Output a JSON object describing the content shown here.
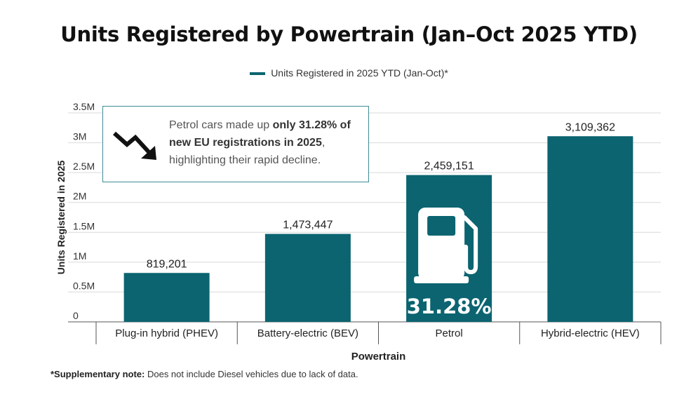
{
  "title": "Units Registered by Powertrain (Jan–Oct 2025 YTD)",
  "legend": {
    "label": "Units Registered in 2025 YTD (Jan-Oct)*"
  },
  "callout": {
    "text_start": "Petrol cars made up ",
    "text_bold": "only 31.28% of new EU registrations in 2025",
    "text_end": ", highlighting their rapid decline."
  },
  "note": {
    "bold": "*Supplementary note:",
    "text": " Does not include Diesel vehicles due to lack of data."
  },
  "colors": {
    "bar": "#0b6470",
    "grid": "#d9d9d9",
    "callout_border": "#3e8c95"
  },
  "chart_data": {
    "type": "bar",
    "title": "Units Registered by Powertrain (Jan–Oct 2025 YTD)",
    "xlabel": "Powertrain",
    "ylabel": "Units Registered in 2025",
    "categories": [
      "Plug-in hybrid (PHEV)",
      "Battery-electric (BEV)",
      "Petrol",
      "Hybrid-electric (HEV)"
    ],
    "series": [
      {
        "name": "Units Registered in 2025 YTD (Jan-Oct)*",
        "values": [
          819201,
          1473447,
          2459151,
          3109362
        ]
      }
    ],
    "data_labels": [
      "819,201",
      "1,473,447",
      "2,459,151",
      "3,109,362"
    ],
    "yticks": [
      0,
      500000,
      1000000,
      1500000,
      2000000,
      2500000,
      3000000,
      3500000
    ],
    "ytick_labels": [
      "0",
      "0.5M",
      "1M",
      "1.5M",
      "2M",
      "2.5M",
      "3M",
      "3.5M"
    ],
    "ylim": [
      0,
      3500000
    ],
    "grid": true,
    "legend_position": "top-center",
    "highlight": {
      "category": "Petrol",
      "label": "31.28%",
      "icon": "fuel-pump-icon"
    }
  }
}
